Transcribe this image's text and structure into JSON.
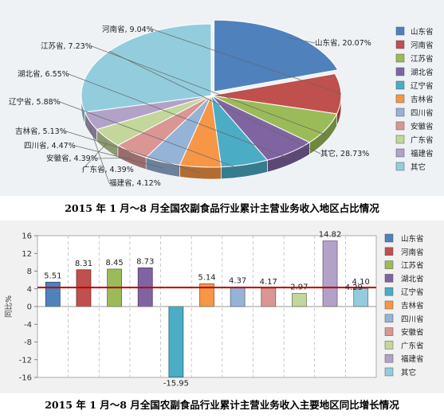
{
  "captions": {
    "pie": "2015 年 1 月～8 月全国农副食品行业累计主营业务收入地区占比情况",
    "bar": "2015 年 1 月～8 月全国农副食品行业累计主营业务收入主要地区同比增长情况"
  },
  "chart_data": [
    {
      "type": "pie",
      "legend_position": "right",
      "slices": [
        {
          "name": "山东省",
          "value": 20.07,
          "label": "山东省, 20.07%",
          "color": "#4f81bd"
        },
        {
          "name": "河南省",
          "value": 9.04,
          "label": "河南省, 9.04%",
          "color": "#c0504d"
        },
        {
          "name": "江苏省",
          "value": 7.23,
          "label": "江苏省, 7.23%",
          "color": "#9bbb59"
        },
        {
          "name": "湖北省",
          "value": 6.55,
          "label": "湖北省, 6.55%",
          "color": "#8064a2"
        },
        {
          "name": "辽宁省",
          "value": 5.88,
          "label": "辽宁省, 5.88%",
          "color": "#4bacc6"
        },
        {
          "name": "吉林省",
          "value": 5.13,
          "label": "吉林省, 5.13%",
          "color": "#f79646"
        },
        {
          "name": "四川省",
          "value": 4.47,
          "label": "四川省, 4.47%",
          "color": "#95b3d7"
        },
        {
          "name": "安徽省",
          "value": 4.39,
          "label": "安徽省, 4.39%",
          "color": "#d99694"
        },
        {
          "name": "广东省",
          "value": 4.39,
          "label": "广东省, 4.39%",
          "color": "#c3d69b"
        },
        {
          "name": "福建省",
          "value": 4.12,
          "label": "福建省, 4.12%",
          "color": "#b2a2c7"
        },
        {
          "name": "其它",
          "value": 28.73,
          "label": "其它, 28.73%",
          "color": "#93cddd"
        }
      ]
    },
    {
      "type": "bar",
      "ylabel": "同比%",
      "ylim": [
        -16,
        16
      ],
      "yticks": [
        "16",
        "12",
        "8",
        "4",
        "0",
        "-4",
        "-8",
        "-12",
        "-16"
      ],
      "reference_line": {
        "value": 4.29,
        "label": "4.29",
        "color": "#c00000"
      },
      "legend_position": "right",
      "grid": true,
      "series": [
        {
          "name": "山东省",
          "value": 5.51,
          "label": "5.51",
          "color": "#4f81bd"
        },
        {
          "name": "河南省",
          "value": 8.31,
          "label": "8.31",
          "color": "#c0504d"
        },
        {
          "name": "江苏省",
          "value": 8.45,
          "label": "8.45",
          "color": "#9bbb59"
        },
        {
          "name": "湖北省",
          "value": 8.73,
          "label": "8.73",
          "color": "#8064a2"
        },
        {
          "name": "辽宁省",
          "value": -15.95,
          "label": "-15.95",
          "color": "#4bacc6"
        },
        {
          "name": "吉林省",
          "value": 5.14,
          "label": "5.14",
          "color": "#f79646"
        },
        {
          "name": "四川省",
          "value": 4.37,
          "label": "4.37",
          "color": "#95b3d7"
        },
        {
          "name": "安徽省",
          "value": 4.17,
          "label": "4.17",
          "color": "#d99694"
        },
        {
          "name": "广东省",
          "value": 2.97,
          "label": "2.97",
          "color": "#c3d69b"
        },
        {
          "name": "福建省",
          "value": 14.82,
          "label": "14.82",
          "color": "#b2a2c7"
        },
        {
          "name": "其它",
          "value": 4.1,
          "label": "4.10",
          "color": "#93cddd"
        }
      ]
    }
  ]
}
